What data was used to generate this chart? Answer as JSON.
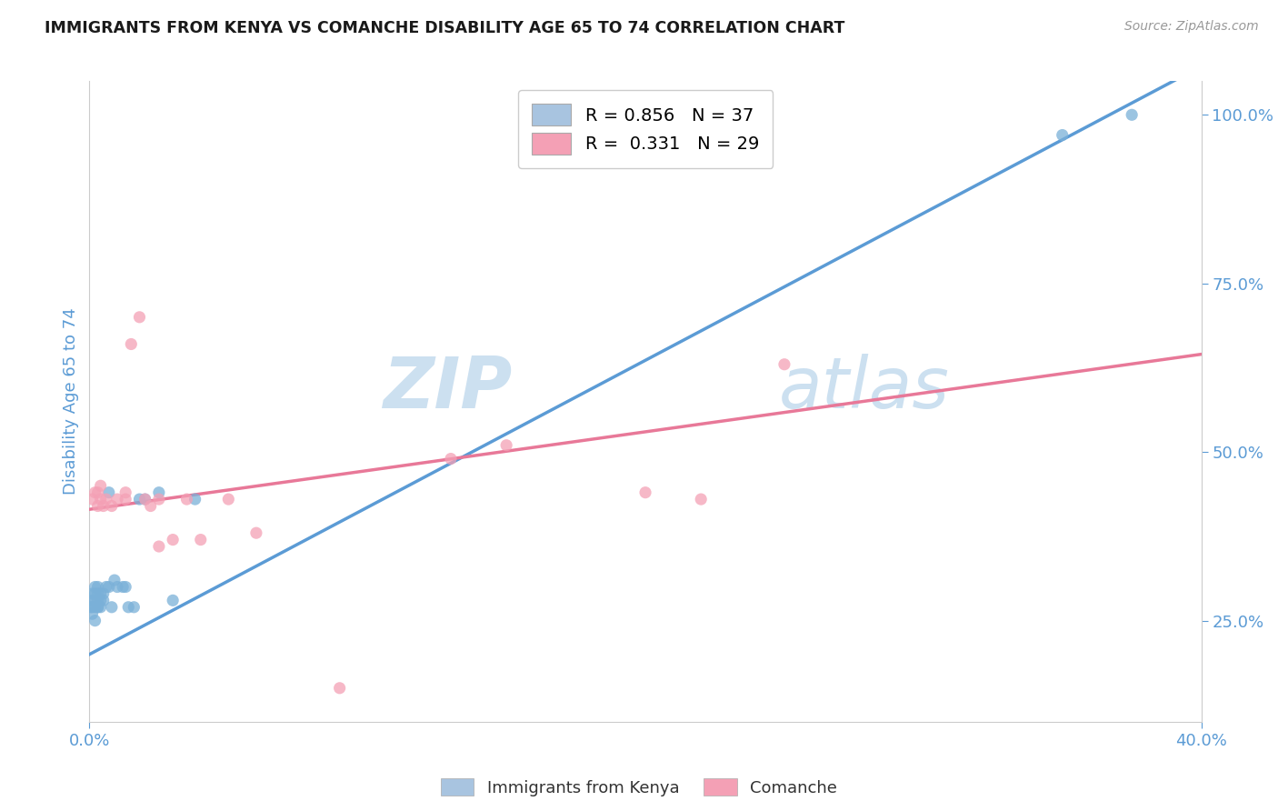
{
  "title": "IMMIGRANTS FROM KENYA VS COMANCHE DISABILITY AGE 65 TO 74 CORRELATION CHART",
  "source_text": "Source: ZipAtlas.com",
  "ylabel": "Disability Age 65 to 74",
  "xlim": [
    0.0,
    0.4
  ],
  "ylim": [
    0.1,
    1.05
  ],
  "x_tick_labels": [
    "0.0%",
    "40.0%"
  ],
  "x_tick_vals": [
    0.0,
    0.4
  ],
  "y_ticks_right": [
    0.25,
    0.5,
    0.75,
    1.0
  ],
  "y_tick_labels_right": [
    "25.0%",
    "50.0%",
    "75.0%",
    "100.0%"
  ],
  "legend_label_1": "R = 0.856   N = 37",
  "legend_label_2": "R =  0.331   N = 29",
  "bottom_label_1": "Immigrants from Kenya",
  "bottom_label_2": "Comanche",
  "blue_scatter_x": [
    0.0005,
    0.001,
    0.001,
    0.001,
    0.001,
    0.002,
    0.002,
    0.002,
    0.002,
    0.002,
    0.003,
    0.003,
    0.003,
    0.003,
    0.003,
    0.004,
    0.004,
    0.004,
    0.005,
    0.005,
    0.006,
    0.007,
    0.007,
    0.008,
    0.009,
    0.01,
    0.012,
    0.013,
    0.014,
    0.016,
    0.018,
    0.02,
    0.025,
    0.03,
    0.038,
    0.35,
    0.375
  ],
  "blue_scatter_y": [
    0.27,
    0.26,
    0.27,
    0.28,
    0.29,
    0.25,
    0.27,
    0.28,
    0.29,
    0.3,
    0.27,
    0.27,
    0.28,
    0.29,
    0.3,
    0.27,
    0.28,
    0.29,
    0.28,
    0.29,
    0.3,
    0.44,
    0.3,
    0.27,
    0.31,
    0.3,
    0.3,
    0.3,
    0.27,
    0.27,
    0.43,
    0.43,
    0.44,
    0.28,
    0.43,
    0.97,
    1.0
  ],
  "pink_scatter_x": [
    0.001,
    0.002,
    0.003,
    0.003,
    0.004,
    0.004,
    0.005,
    0.006,
    0.008,
    0.01,
    0.013,
    0.015,
    0.018,
    0.02,
    0.022,
    0.025,
    0.03,
    0.035,
    0.04,
    0.05,
    0.06,
    0.09,
    0.13,
    0.15,
    0.2,
    0.22,
    0.25,
    0.025,
    0.013
  ],
  "pink_scatter_y": [
    0.43,
    0.44,
    0.42,
    0.44,
    0.45,
    0.43,
    0.42,
    0.43,
    0.42,
    0.43,
    0.43,
    0.66,
    0.7,
    0.43,
    0.42,
    0.36,
    0.37,
    0.43,
    0.37,
    0.43,
    0.38,
    0.15,
    0.49,
    0.51,
    0.44,
    0.43,
    0.63,
    0.43,
    0.44
  ],
  "blue_line_intercept": 0.2,
  "blue_line_slope": 2.18,
  "pink_line_intercept": 0.415,
  "pink_line_slope": 0.575,
  "blue_color": "#5b9bd5",
  "pink_color": "#e87898",
  "blue_scatter_color": "#7ab0d8",
  "pink_scatter_color": "#f4a0b5",
  "blue_legend_color": "#a8c4e0",
  "pink_legend_color": "#f4a0b5",
  "background_color": "#ffffff",
  "grid_color": "#cccccc",
  "axis_label_color": "#5b9bd5",
  "watermark_color": "#cce0f0"
}
